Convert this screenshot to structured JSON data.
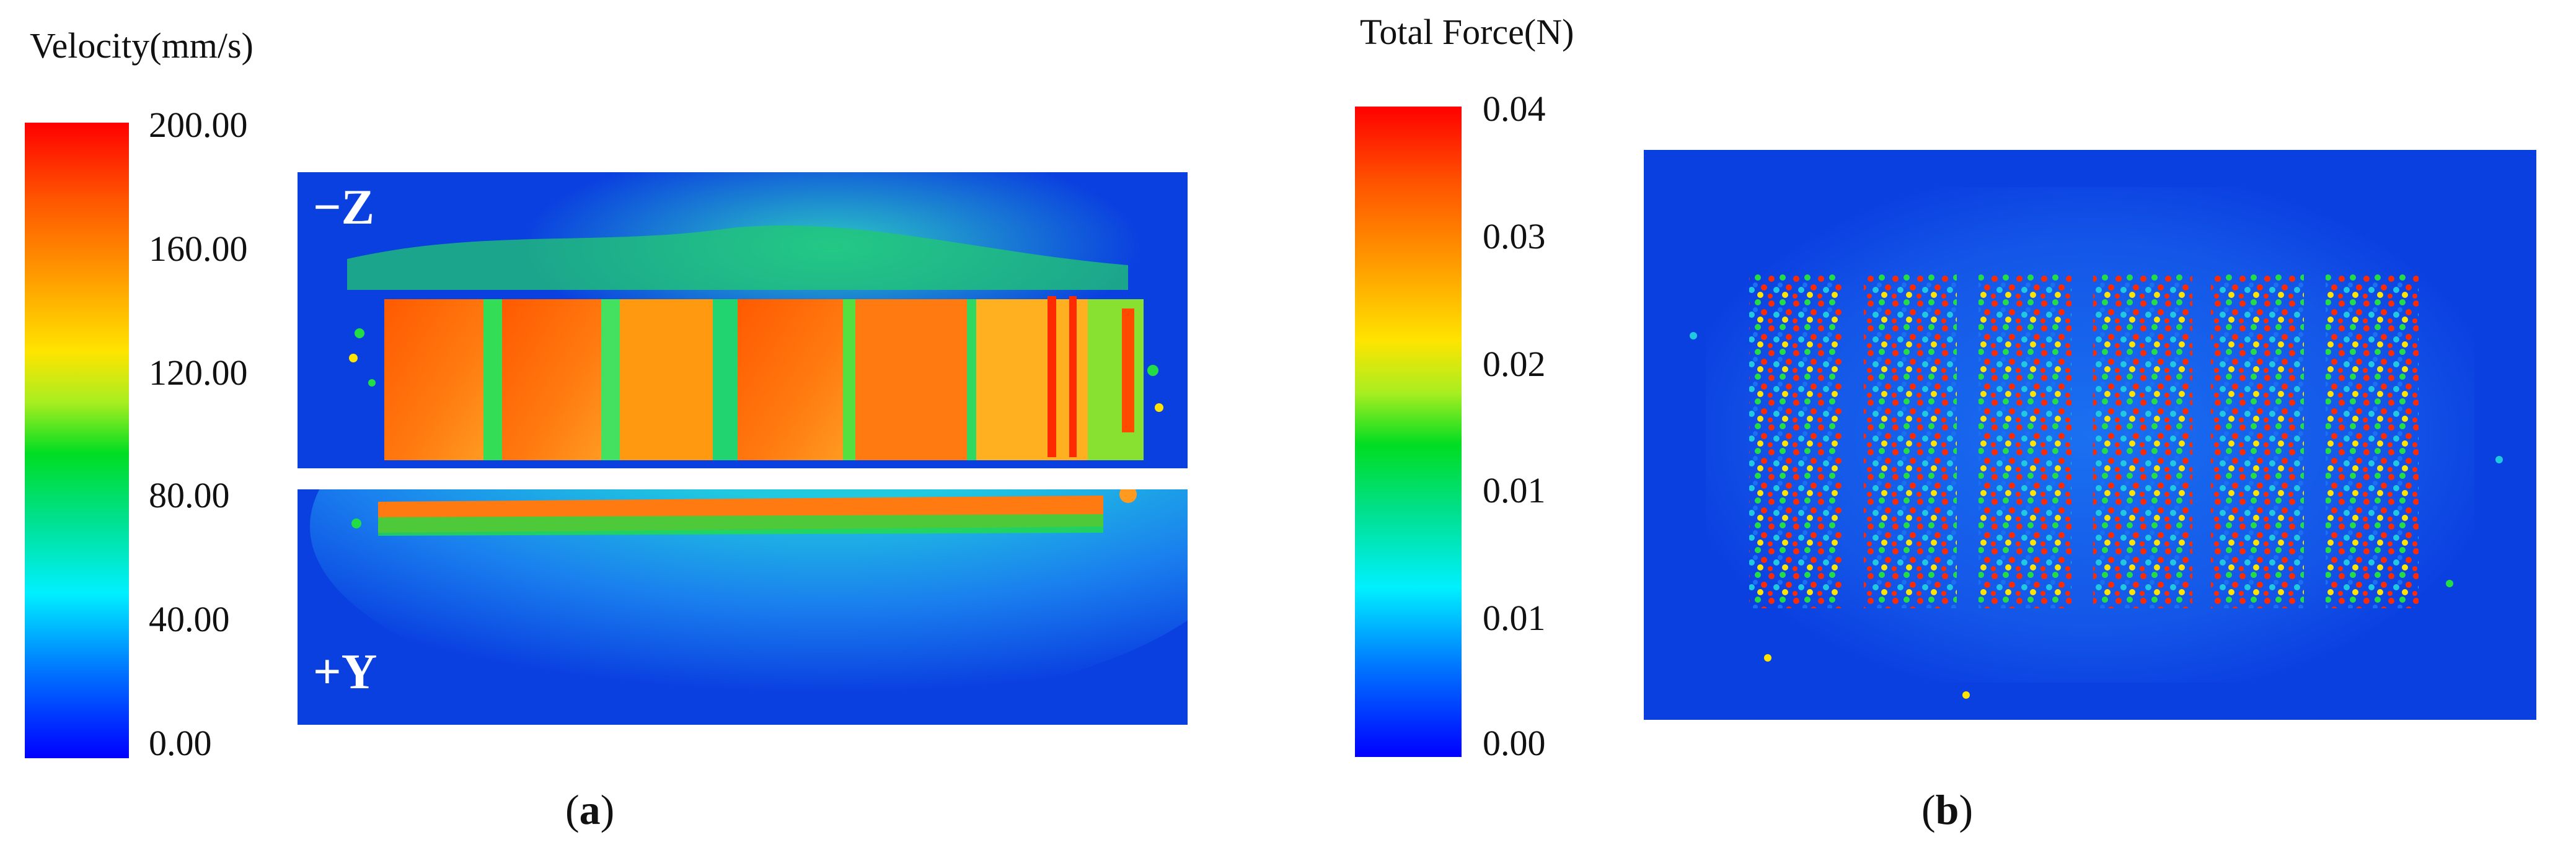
{
  "panel_a": {
    "colorbar_title": "Velocity(mm/s)",
    "ticks": [
      "200.00",
      "160.00",
      "120.00",
      "80.00",
      "40.00",
      "0.00"
    ],
    "upper_view_label": "−Z",
    "lower_view_label": "+Y",
    "caption_open": "(",
    "caption_letter": "a",
    "caption_close": ")"
  },
  "panel_b": {
    "colorbar_title": "Total Force(N)",
    "ticks": [
      "0.04",
      "0.03",
      "0.02",
      "0.01",
      "0.01",
      "0.00"
    ],
    "caption_open": "(",
    "caption_letter": "b",
    "caption_close": ")"
  },
  "colors": {
    "background_blue": "#0a3fe0",
    "high_red": "#ff2a00",
    "orange": "#ff7a10",
    "green": "#22dd44",
    "cyan": "#20c8e0"
  }
}
